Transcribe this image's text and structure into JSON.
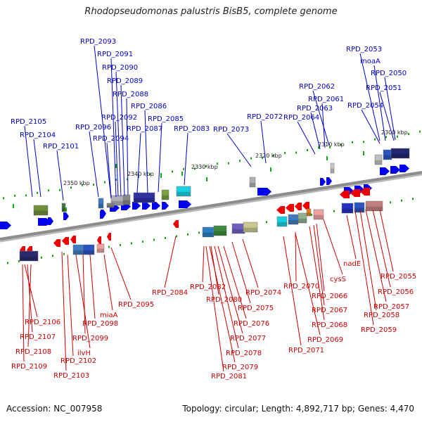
{
  "title": "Rhodopseudomonas palustris BisB5, complete genome",
  "footer": {
    "accession": "Accession: NC_007958",
    "summary": "Topology: circular; Length: 4,892,717 bp; Genes: 4,470"
  },
  "colors": {
    "forward_label": "#0000cc",
    "reverse_label": "#cc0000",
    "forward_gene": "#0000ee",
    "reverse_gene": "#ee0000",
    "backbone": "#8c8c8c",
    "tick": "#11aa11"
  },
  "scale_labels": [
    {
      "id": "tick-2350",
      "text": "2350 kbp"
    },
    {
      "id": "tick-2340",
      "text": "2340 kbp"
    },
    {
      "id": "tick-2330",
      "text": "2330 kbp"
    },
    {
      "id": "tick-2320",
      "text": "2320 kbp"
    },
    {
      "id": "tick-2310",
      "text": "2310 kbp"
    },
    {
      "id": "tick-2300",
      "text": "2300 kbp"
    }
  ],
  "forward_labels": [
    "RPD_2105",
    "RPD_2104",
    "RPD_2101",
    "RPD_2093",
    "RPD_2091",
    "RPD_2090",
    "RPD_2089",
    "RPD_2088",
    "RPD_2086",
    "RPD_2092",
    "RPD_2085",
    "RPD_2096",
    "RPD_2087",
    "RPD_2094",
    "RPD_2083",
    "RPD_2073",
    "RPD_2072",
    "RPD_2064",
    "RPD_2063",
    "RPD_2061",
    "RPD_2062",
    "RPD_2054",
    "RPD_2051",
    "RPD_2050",
    "moaA",
    "RPD_2053"
  ],
  "reverse_labels": [
    "RPD_2106",
    "RPD_2107",
    "RPD_2108",
    "RPD_2109",
    "RPD_2102",
    "RPD_2103",
    "ilvH",
    "RPD_2099",
    "RPD_2098",
    "miaA",
    "RPD_2095",
    "RPD_2084",
    "RPD_2082",
    "RPD_2080",
    "RPD_2081",
    "RPD_2079",
    "RPD_2078",
    "RPD_2077",
    "RPD_2076",
    "RPD_2075",
    "RPD_2074",
    "RPD_2071",
    "RPD_2069",
    "RPD_2070",
    "RPD_2068",
    "RPD_2067",
    "RPD_2066",
    "cysS",
    "nadE",
    "RPD_2059",
    "RPD_2058",
    "RPD_2057",
    "RPD_2056",
    "RPD_2055"
  ]
}
